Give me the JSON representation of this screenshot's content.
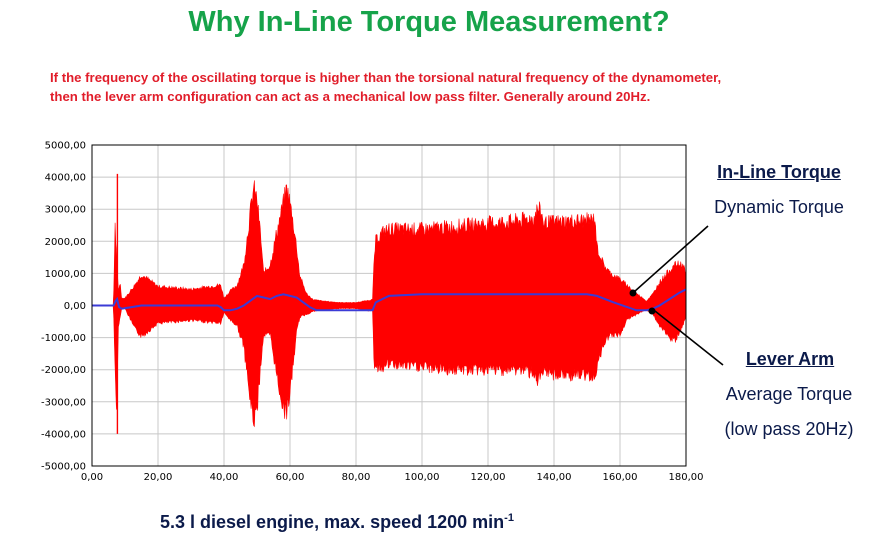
{
  "header": {
    "title": "Why In-Line Torque Measurement?",
    "subtitle_line1": "If the frequency of the oscillating torque is higher than the torsional natural frequency of the dynamometer,",
    "subtitle_line2": "then the lever arm configuration can act as a mechanical low pass filter. Generally around 20Hz."
  },
  "annotations": {
    "inline_title": "In-Line Torque",
    "inline_desc": "Dynamic Torque",
    "lever_title": "Lever Arm",
    "lever_desc1": "Average Torque",
    "lever_desc2": "(low pass 20Hz)"
  },
  "caption": {
    "text": "5.3 l diesel engine, max. speed 1200 min",
    "superscript": "-1"
  },
  "colors": {
    "dynamic": "#ff0000",
    "average": "#3b3bd6",
    "grid": "#c8c8c8",
    "title": "#16a34a",
    "subtitle": "#e11d2a",
    "annotation": "#0b1a4a"
  },
  "chart_data": {
    "type": "area",
    "xlim": [
      0,
      180
    ],
    "ylim": [
      -5000,
      5000
    ],
    "xticks": [
      0,
      20,
      40,
      60,
      80,
      100,
      120,
      140,
      160,
      180
    ],
    "yticks": [
      -5000,
      -4000,
      -3000,
      -2000,
      -1000,
      0,
      1000,
      2000,
      3000,
      4000,
      5000
    ],
    "xtick_labels": [
      "0,00",
      "20,00",
      "40,00",
      "60,00",
      "80,00",
      "100,00",
      "120,00",
      "140,00",
      "160,00",
      "180,00"
    ],
    "ytick_labels": [
      "-5000,00",
      "-4000,00",
      "-3000,00",
      "-2000,00",
      "-1000,00",
      "0,00",
      "1000,00",
      "2000,00",
      "3000,00",
      "4000,00",
      "5000,00"
    ],
    "grid": true,
    "dynamic_envelope": {
      "x": [
        0,
        6.5,
        7,
        7.5,
        8,
        8.5,
        9,
        10,
        13,
        15,
        20,
        30,
        39,
        40,
        42,
        44,
        46,
        48,
        49,
        50,
        51,
        52,
        54,
        56,
        58,
        59,
        60,
        61,
        62,
        63,
        65,
        67,
        70,
        75,
        80,
        85,
        85.5,
        86,
        88,
        90,
        100,
        110,
        120,
        130,
        134,
        135,
        136,
        137,
        140,
        150,
        152.5,
        153,
        155,
        157,
        160,
        162,
        165,
        167,
        168,
        170,
        172,
        175,
        177,
        179,
        180
      ],
      "upper": [
        0,
        0,
        2700,
        1500,
        500,
        800,
        250,
        250,
        700,
        1050,
        650,
        550,
        700,
        250,
        500,
        700,
        1400,
        3200,
        4000,
        3600,
        2500,
        1100,
        1400,
        2500,
        3500,
        4000,
        3500,
        2800,
        2000,
        1000,
        400,
        200,
        150,
        100,
        100,
        200,
        1600,
        2200,
        2500,
        2600,
        2600,
        2700,
        2800,
        2900,
        3000,
        3300,
        3200,
        2800,
        2850,
        2900,
        2950,
        2000,
        1400,
        1100,
        900,
        700,
        400,
        250,
        150,
        400,
        800,
        1200,
        1400,
        1400,
        1100
      ],
      "lower": [
        0,
        0,
        -2300,
        -3500,
        -800,
        -400,
        -100,
        -100,
        -800,
        -1050,
        -600,
        -500,
        -600,
        -250,
        -500,
        -700,
        -1400,
        -3300,
        -3900,
        -3600,
        -2200,
        -1000,
        -1000,
        -2400,
        -3500,
        -3600,
        -3000,
        -2000,
        -900,
        -400,
        -300,
        -200,
        -150,
        -100,
        -100,
        -200,
        -2000,
        -2100,
        -2100,
        -2000,
        -2100,
        -2200,
        -2200,
        -2200,
        -2300,
        -2600,
        -2500,
        -2300,
        -2350,
        -2400,
        -2350,
        -2100,
        -1300,
        -1000,
        -1000,
        -500,
        -300,
        -200,
        -150,
        -300,
        -700,
        -1100,
        -1200,
        -700,
        -400
      ]
    },
    "trace_spikes": [
      {
        "x": 7.7,
        "y_top": 4100,
        "y_bottom": -4000
      }
    ],
    "average_line": {
      "x": [
        0,
        6.5,
        7.2,
        7.6,
        8.2,
        9,
        12,
        15,
        20,
        30,
        38,
        39,
        40,
        42,
        44,
        46,
        48,
        50,
        52,
        54,
        56,
        58,
        60,
        62,
        64,
        66,
        68,
        70,
        80,
        85,
        86,
        90,
        100,
        120,
        140,
        150,
        153,
        158,
        165,
        168,
        170,
        172,
        175,
        178,
        180
      ],
      "y": [
        0,
        0,
        150,
        200,
        -50,
        -100,
        -50,
        0,
        0,
        0,
        0,
        -50,
        -150,
        -150,
        -100,
        0,
        150,
        300,
        250,
        200,
        300,
        350,
        300,
        250,
        100,
        -50,
        -150,
        -150,
        -150,
        -150,
        100,
        300,
        350,
        350,
        350,
        350,
        300,
        100,
        -150,
        -150,
        -100,
        0,
        200,
        400,
        500
      ]
    }
  }
}
